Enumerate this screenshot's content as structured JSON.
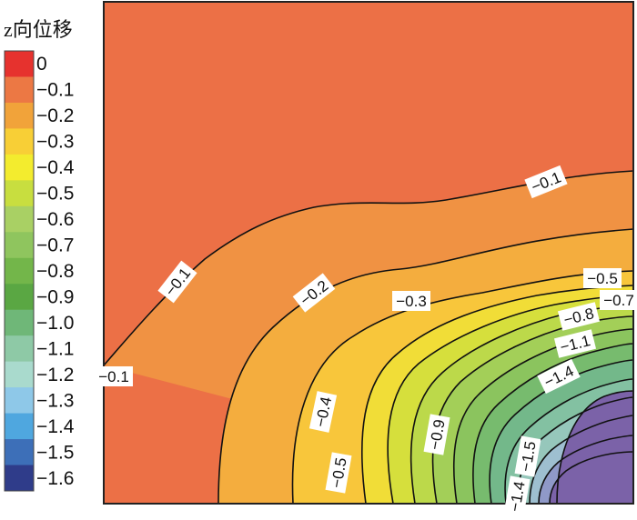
{
  "chart_data": {
    "type": "heatmap",
    "subtype": "filled contour map",
    "title": "z向位移",
    "legend": {
      "placement": "left",
      "levels": [
        "0",
        "−0.1",
        "−0.2",
        "−0.3",
        "−0.4",
        "−0.5",
        "−0.6",
        "−0.7",
        "−0.8",
        "−0.9",
        "−1.0",
        "−1.1",
        "−1.2",
        "−1.3",
        "−1.4",
        "−1.5",
        "−1.6"
      ],
      "colors": [
        "#e6322e",
        "#ec7844",
        "#f1a33a",
        "#f8cf36",
        "#f3ec2e",
        "#c8de3f",
        "#a9d064",
        "#8fc55e",
        "#73b64a",
        "#5aa743",
        "#6fb778",
        "#8ec9a6",
        "#a9dacd",
        "#8ec8e8",
        "#4fa7df",
        "#3d6fb8",
        "#2f3c8a"
      ]
    },
    "band_colors": {
      "0 to -0.1": "#ec7046",
      "-0.1 to -0.2": "#f09243",
      "-0.2 to -0.3": "#f4ad3e",
      "-0.3 to -0.4": "#f8c63b",
      "-0.4 to -0.5": "#f1dd37",
      "-0.5 to -0.6": "#d6df3c",
      "-0.6 to -0.7": "#bcd94a",
      "-0.7 to -0.8": "#a3cf58",
      "-0.8 to -0.9": "#8bc45e",
      "-0.9 to -1.0": "#77bb6e",
      "-1.0 to -1.1": "#73b88a",
      "-1.1 to -1.2": "#83c1a2",
      "-1.2 to -1.3": "#96c7bb",
      "-1.3 to -1.4": "#9ebfd0",
      "-1.4 to -1.5": "#8f99c8",
      "-1.5 to -1.6": "#7b62a8"
    },
    "contour_labels": [
      "−0.1",
      "−0.1",
      "−0.1",
      "−0.2",
      "−0.3",
      "−0.4",
      "−0.5",
      "−0.5",
      "−0.7",
      "−0.8",
      "−0.9",
      "−1.1",
      "−1.4",
      "−1.4",
      "−1.5"
    ],
    "grid": false,
    "axes": false
  }
}
